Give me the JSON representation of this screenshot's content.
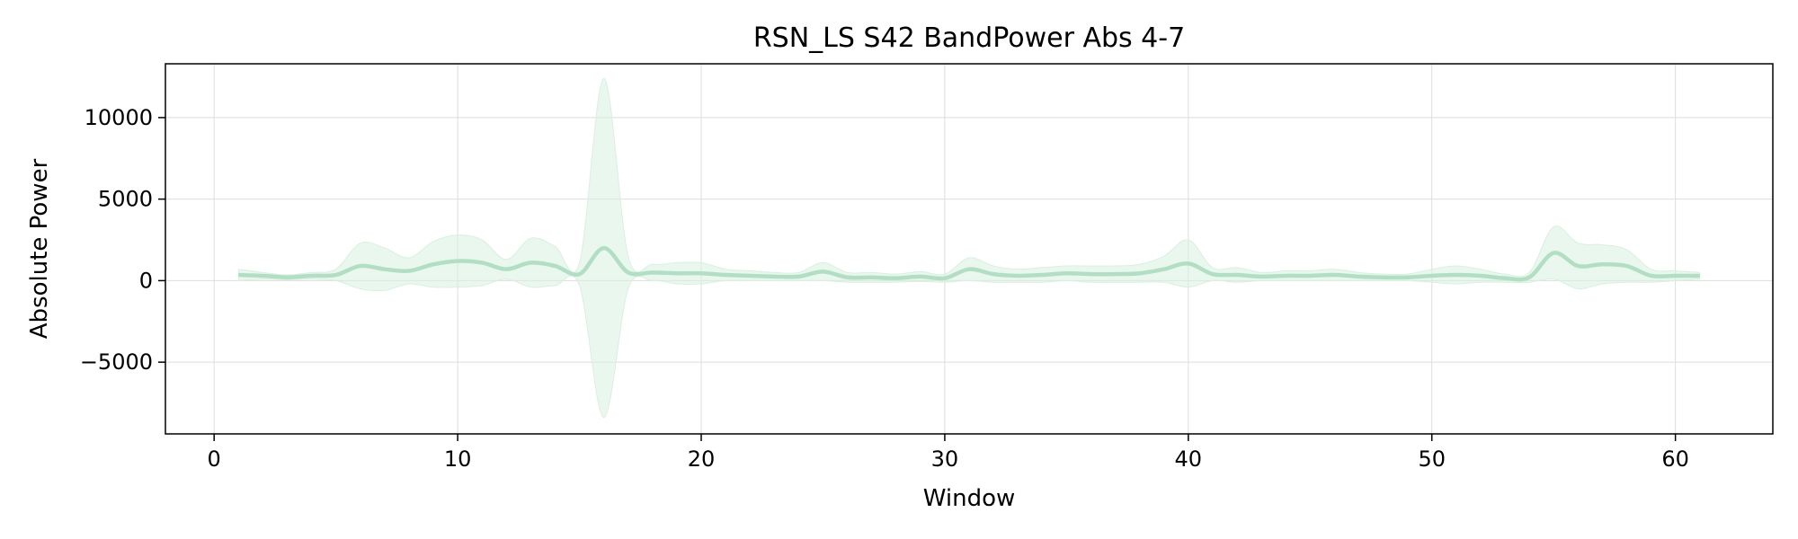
{
  "chart_data": {
    "type": "line",
    "title": "RSN_LS S42 BandPower Abs 4-7",
    "xlabel": "Window",
    "ylabel": "Absolute Power",
    "xlim": [
      -2,
      64
    ],
    "ylim": [
      -9400,
      13300
    ],
    "x_ticks": [
      0,
      10,
      20,
      30,
      40,
      50,
      60
    ],
    "x_tick_labels": [
      "0",
      "10",
      "20",
      "30",
      "40",
      "50",
      "60"
    ],
    "y_ticks": [
      -5000,
      0,
      5000,
      10000
    ],
    "y_tick_labels": [
      "−5000",
      "0",
      "5000",
      "10000"
    ],
    "grid": true,
    "line_color": "#b2dfc4",
    "band_color": "#d8f0e0",
    "series": [
      {
        "x": [
          1,
          2,
          3,
          4,
          5,
          6,
          7,
          8,
          9,
          10,
          11,
          12,
          13,
          14,
          15,
          16,
          17,
          18,
          19,
          20,
          21,
          22,
          23,
          24,
          25,
          26,
          27,
          28,
          29,
          30,
          31,
          32,
          33,
          34,
          35,
          36,
          37,
          38,
          39,
          40,
          41,
          42,
          43,
          44,
          45,
          46,
          47,
          48,
          49,
          50,
          51,
          52,
          53,
          54,
          55,
          56,
          57,
          58,
          59,
          60,
          61
        ],
        "mean": [
          350,
          300,
          200,
          300,
          350,
          900,
          700,
          600,
          1000,
          1200,
          1100,
          700,
          1100,
          900,
          400,
          2000,
          500,
          500,
          450,
          450,
          350,
          300,
          250,
          250,
          550,
          200,
          200,
          150,
          250,
          150,
          700,
          400,
          300,
          350,
          450,
          400,
          400,
          450,
          700,
          1050,
          400,
          350,
          250,
          300,
          300,
          350,
          250,
          200,
          200,
          300,
          350,
          300,
          150,
          200,
          1700,
          900,
          1000,
          900,
          300,
          300,
          300
        ],
        "upper": [
          700,
          500,
          350,
          500,
          700,
          2300,
          2000,
          1400,
          2400,
          2800,
          2500,
          1300,
          2600,
          2100,
          1100,
          12400,
          1500,
          1000,
          1100,
          1100,
          700,
          600,
          500,
          500,
          1100,
          500,
          500,
          400,
          550,
          400,
          1400,
          900,
          700,
          800,
          900,
          900,
          900,
          1000,
          1500,
          2500,
          800,
          800,
          500,
          600,
          600,
          700,
          500,
          400,
          400,
          700,
          900,
          700,
          400,
          500,
          3300,
          2300,
          2200,
          1900,
          700,
          600,
          500
        ],
        "lower": [
          0,
          100,
          50,
          100,
          0,
          -500,
          -600,
          -200,
          -400,
          -400,
          -300,
          100,
          -400,
          -300,
          -300,
          -8400,
          -500,
          0,
          -200,
          -200,
          0,
          0,
          0,
          0,
          0,
          -100,
          -100,
          -100,
          -50,
          -100,
          0,
          -100,
          -100,
          -100,
          0,
          -100,
          -100,
          -100,
          -100,
          -400,
          0,
          -100,
          0,
          0,
          0,
          0,
          0,
          0,
          0,
          -100,
          -200,
          -100,
          -100,
          -100,
          100,
          -500,
          -200,
          -100,
          -100,
          0,
          100
        ]
      }
    ]
  }
}
